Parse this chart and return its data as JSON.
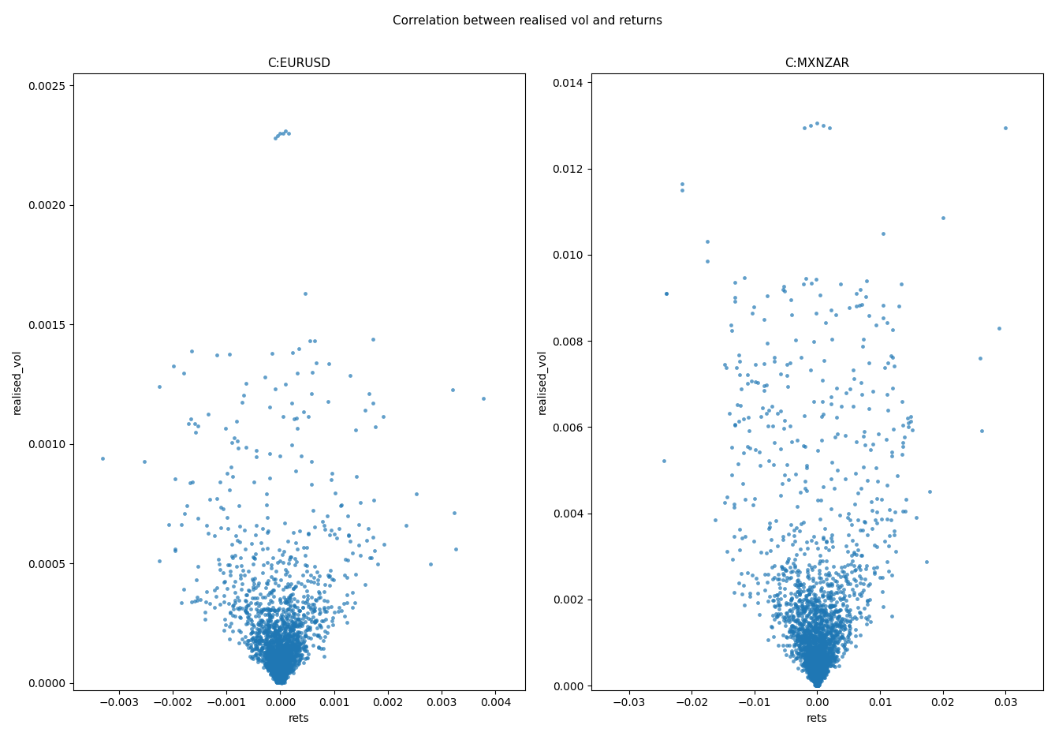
{
  "title": "Correlation between realised vol and returns",
  "subplot1_title": "C:EURUSD",
  "subplot2_title": "C:MXNZAR",
  "xlabel": "rets",
  "ylabel": "realised_vol",
  "color": "#1f77b4",
  "marker_size": 12,
  "alpha": 0.7,
  "eurusd_xlim": [
    -0.00385,
    0.00455
  ],
  "eurusd_ylim": [
    -3e-05,
    0.00255
  ],
  "mxnzar_xlim": [
    -0.036,
    0.036
  ],
  "mxnzar_ylim": [
    -0.0001,
    0.0142
  ],
  "seed": 42
}
